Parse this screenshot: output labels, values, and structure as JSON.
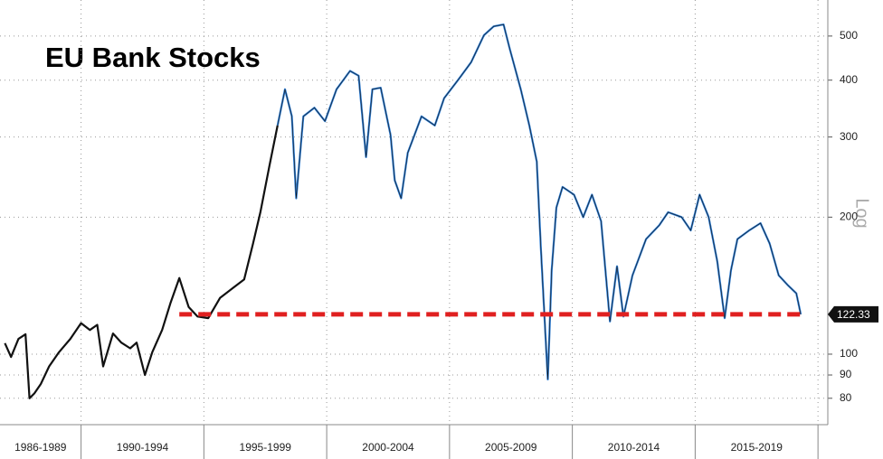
{
  "chart_data": {
    "type": "line",
    "title": "EU Bank Stocks",
    "y_axis_label": "Log",
    "log_scale": true,
    "grid": true,
    "xlim": [
      1986.7,
      2020.4
    ],
    "ylim": [
      70,
      600
    ],
    "yticks": [
      80,
      90,
      100,
      200,
      300,
      400,
      500
    ],
    "xticks": [
      1990,
      1995,
      2000,
      2005,
      2010,
      2015,
      2020
    ],
    "periods": [
      "1986-1989",
      "1990-1994",
      "1995-1999",
      "2000-2004",
      "2005-2009",
      "2010-2014",
      "2015-2019"
    ],
    "series": [
      {
        "color": "#111111",
        "x": [
          1986.9,
          1987.15,
          1987.45,
          1987.74,
          1987.9,
          1988.1,
          1988.36,
          1988.7,
          1989.1,
          1989.56,
          1990.0,
          1990.36,
          1990.66,
          1990.9,
          1991.3,
          1991.64,
          1992.0,
          1992.26,
          1992.6,
          1992.9,
          1993.3,
          1993.65,
          1994.0,
          1994.38,
          1994.74,
          1995.18,
          1995.66,
          1996.2,
          1996.64,
          1997.0,
          1997.3,
          1997.66,
          1998.0
        ],
        "values": [
          105.7,
          98.6,
          108,
          110.6,
          80,
          82,
          86,
          94,
          101,
          108,
          117,
          113,
          116,
          94,
          111,
          106,
          103,
          106,
          90,
          101,
          113,
          130,
          147,
          127,
          121,
          120,
          133,
          140,
          146,
          175,
          205,
          258,
          318
        ]
      },
      {
        "color": "#2f7fd6",
        "x": [
          1998.0,
          1998.3,
          1998.58,
          1998.76,
          1999.05,
          1999.5,
          1999.93,
          2000.4,
          2000.95,
          2001.3,
          2001.6,
          2001.86,
          2002.2,
          2002.6,
          2002.77,
          2003.03,
          2003.3,
          2003.86,
          2004.4,
          2004.78,
          2005.33,
          2005.88,
          2006.4,
          2006.8,
          2007.2,
          2007.45,
          2007.9,
          2008.25,
          2008.55,
          2008.72,
          2008.9,
          2009.0,
          2009.16,
          2009.35,
          2009.6,
          2010.07,
          2010.44,
          2010.8,
          2011.17,
          2011.53,
          2011.82,
          2012.08,
          2012.45,
          2013.0,
          2013.54,
          2013.9,
          2014.45,
          2014.82,
          2015.18,
          2015.55,
          2015.9,
          2016.2,
          2016.46,
          2016.72,
          2017.2,
          2017.66,
          2018.03,
          2018.4,
          2018.76,
          2019.12,
          2019.3
        ],
        "values": [
          318,
          382,
          333,
          220,
          333,
          348,
          325,
          382,
          419,
          409,
          271,
          382,
          385,
          303,
          241,
          220,
          277,
          333,
          318,
          365,
          399,
          438,
          502,
          525,
          530,
          469,
          382,
          318,
          265,
          170,
          111,
          88,
          153,
          210,
          233,
          224,
          200,
          224,
          196,
          118,
          156,
          121,
          149,
          179,
          192,
          205,
          200,
          187,
          224,
          200,
          160,
          120,
          153,
          179,
          187,
          194,
          175,
          149,
          142,
          136,
          122.33
        ]
      }
    ],
    "support_line": {
      "value": 122.33,
      "from": 1994.0,
      "to": 2019.3,
      "color": "#e02020"
    },
    "last_value": 122.33
  }
}
